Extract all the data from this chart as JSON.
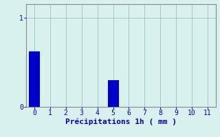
{
  "categories": [
    0,
    1,
    2,
    3,
    4,
    5,
    6,
    7,
    8,
    9,
    10,
    11
  ],
  "values": [
    0.62,
    0.0,
    0.0,
    0.0,
    0.0,
    0.3,
    0.0,
    0.0,
    0.0,
    0.0,
    0.0,
    0.0
  ],
  "bar_color": "#0000cc",
  "background_color": "#d8f0ee",
  "grid_color": "#a0c8c8",
  "spine_color": "#888888",
  "text_color": "#0000bb",
  "xlabel": "Précipitations 1h ( mm )",
  "ylim": [
    0,
    1.15
  ],
  "yticks": [
    0,
    1
  ],
  "xlim": [
    -0.5,
    11.5
  ],
  "bar_width": 0.7,
  "xlabel_fontsize": 8,
  "tick_fontsize": 7
}
